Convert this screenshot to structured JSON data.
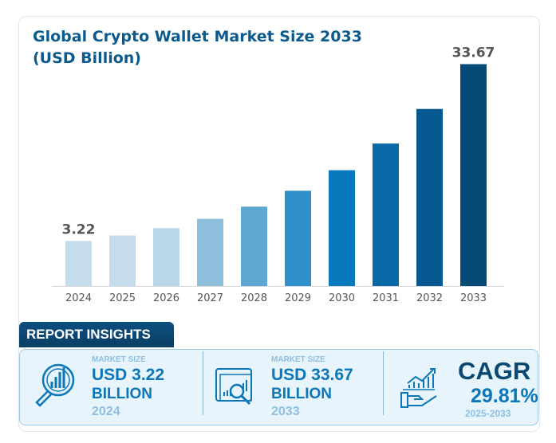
{
  "chart_data": {
    "type": "bar",
    "title": "Global Crypto Wallet Market Size 2033 (USD Billion)",
    "categories": [
      "2024",
      "2025",
      "2026",
      "2027",
      "2028",
      "2029",
      "2030",
      "2031",
      "2032",
      "2033"
    ],
    "values": [
      3.22,
      4.18,
      5.43,
      7.04,
      9.14,
      11.87,
      15.41,
      20.0,
      25.96,
      33.67
    ],
    "data_labels": {
      "2024": "3.22",
      "2033": "33.67"
    },
    "colors": [
      "#c5dcea",
      "#c5dcea",
      "#b8d7e8",
      "#8ebfdc",
      "#5ea7d2",
      "#2f90cc",
      "#0a78bd",
      "#0868a8",
      "#065990",
      "#044b78"
    ],
    "grid": false,
    "legend": "none"
  },
  "insights": {
    "header": "REPORT INSIGHTS",
    "items": [
      {
        "label": "MARKET SIZE",
        "value": "USD 3.22",
        "unit": "BILLION",
        "year": "2024",
        "icon": "magnifier-chart-icon"
      },
      {
        "label": "MARKET SIZE",
        "value": "USD 33.67",
        "unit": "BILLION",
        "year": "2033",
        "icon": "browser-analytics-icon"
      }
    ],
    "cagr": {
      "label": "CAGR",
      "value": "29.81%",
      "period": "2025-2033",
      "icon": "hand-growth-chart-icon"
    }
  }
}
